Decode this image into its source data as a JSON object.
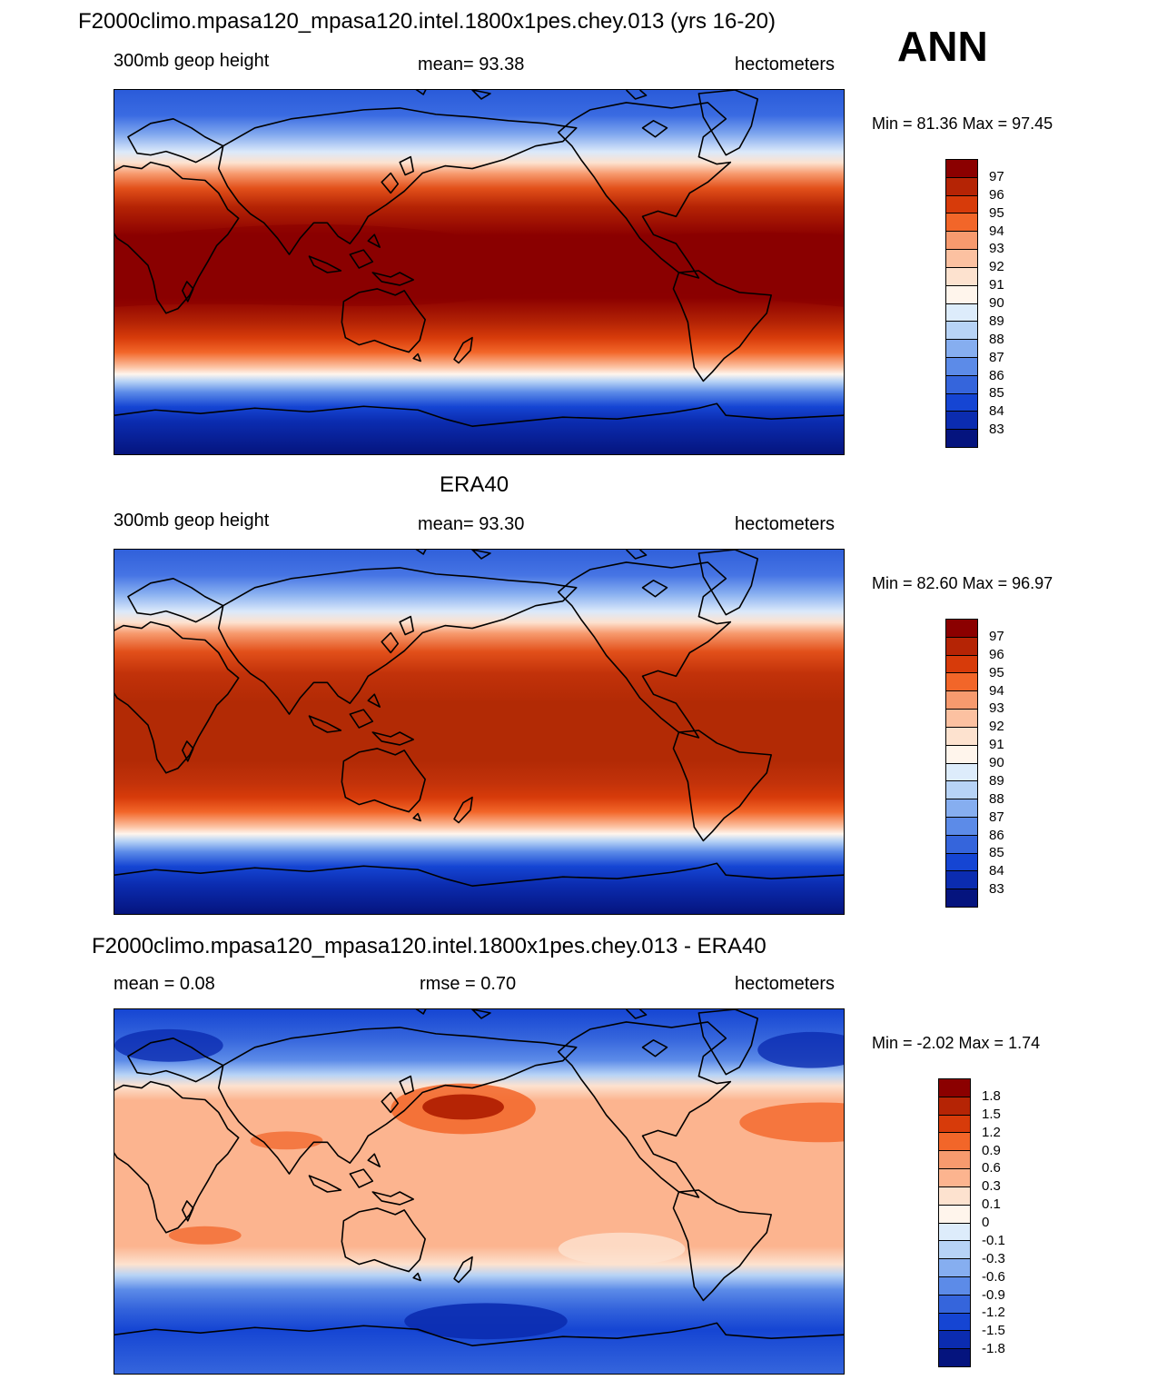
{
  "season": "ANN",
  "units": "hectometers",
  "palette_abs": [
    "#8b0000",
    "#b52405",
    "#d73b0a",
    "#f26629",
    "#f79a6e",
    "#fcc1a1",
    "#fde2cf",
    "#fff5ec",
    "#ddecfb",
    "#b7d3f6",
    "#86aef0",
    "#5c8be8",
    "#3565dc",
    "#1545d3",
    "#0b2cb0",
    "#05147e"
  ],
  "palette_diff": [
    "#8b0000",
    "#b52405",
    "#d73b0a",
    "#f26629",
    "#f79a6e",
    "#fcb48f",
    "#fde2cf",
    "#fff5ec",
    "#ddecfb",
    "#b7d3f6",
    "#86aef0",
    "#5c8be8",
    "#3565dc",
    "#1545d3",
    "#0b2cb0",
    "#05147e"
  ],
  "panels": [
    {
      "id": "model",
      "title": "F2000climo.mpasa120_mpasa120.intel.1800x1pes.chey.013 (yrs 16-20)",
      "left": "300mb geop height",
      "center": "mean=  93.38",
      "right": "hectometers",
      "minmax": "Min =  81.36 Max =  97.45",
      "levels": [
        "97",
        "96",
        "95",
        "94",
        "93",
        "92",
        "91",
        "90",
        "89",
        "88",
        "87",
        "86",
        "85",
        "84",
        "83"
      ]
    },
    {
      "id": "obs",
      "title": "ERA40",
      "left": "300mb geop height",
      "center": "mean=  93.30",
      "right": "hectometers",
      "minmax": "Min =  82.60 Max =  96.97",
      "levels": [
        "97",
        "96",
        "95",
        "94",
        "93",
        "92",
        "91",
        "90",
        "89",
        "88",
        "87",
        "86",
        "85",
        "84",
        "83"
      ]
    },
    {
      "id": "diff",
      "title": "F2000climo.mpasa120_mpasa120.intel.1800x1pes.chey.013 - ERA40",
      "left": "mean =   0.08",
      "center": "rmse =   0.70",
      "right": "hectometers",
      "minmax": "Min =  -2.02 Max =   1.74",
      "levels": [
        "1.8",
        "1.5",
        "1.2",
        "0.9",
        "0.6",
        "0.3",
        "0.1",
        "0",
        "-0.1",
        "-0.3",
        "-0.6",
        "-0.9",
        "-1.2",
        "-1.5",
        "-1.8"
      ]
    }
  ]
}
